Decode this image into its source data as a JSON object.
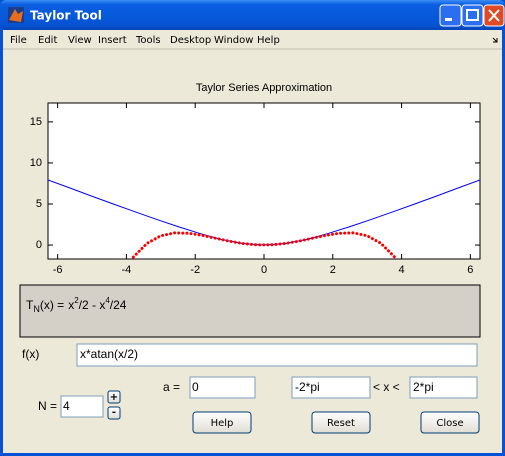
{
  "window": {
    "title": "Taylor Tool"
  },
  "menu": [
    "File",
    "Edit",
    "View",
    "Insert",
    "Tools",
    "Desktop",
    "Window",
    "Help"
  ],
  "chart_data": {
    "type": "line",
    "title": "Taylor Series Approximation",
    "xlim": [
      -6.28,
      6.28
    ],
    "ylim": [
      -1.7,
      17.3
    ],
    "xticks": [
      -6,
      -4,
      -2,
      0,
      2,
      4,
      6
    ],
    "yticks": [
      0,
      5,
      10,
      15
    ],
    "series": [
      {
        "color": "#0000ff",
        "style": "solid",
        "x": [
          -6.28,
          -5.65,
          -5.03,
          -4.4,
          -3.77,
          -3.14,
          -2.51,
          -1.88,
          -1.26,
          -0.63,
          0,
          0.63,
          1.26,
          1.88,
          2.51,
          3.14,
          3.77,
          4.4,
          5.03,
          5.65,
          6.28
        ],
        "values": [
          7.93,
          6.96,
          5.99,
          5.03,
          4.08,
          3.15,
          2.26,
          1.43,
          0.71,
          0.19,
          0,
          0.19,
          0.71,
          1.43,
          2.26,
          3.15,
          4.08,
          5.03,
          5.99,
          6.96,
          7.93
        ]
      },
      {
        "color": "#ff0000",
        "style": "dotted",
        "x": [
          -3.8,
          -3.4,
          -3.0,
          -2.6,
          -2.2,
          -1.8,
          -1.4,
          -1.0,
          -0.6,
          -0.2,
          0.2,
          0.6,
          1.0,
          1.4,
          1.8,
          2.2,
          2.6,
          3.0,
          3.4,
          3.8
        ],
        "values": [
          -1.47,
          0.21,
          1.13,
          1.48,
          1.44,
          1.18,
          0.82,
          0.46,
          0.18,
          0.02,
          0.02,
          0.18,
          0.46,
          0.82,
          1.18,
          1.44,
          1.48,
          1.13,
          0.21,
          -1.47
        ]
      }
    ]
  },
  "panel": {
    "name": "T",
    "subscript": "N",
    "suffix": "(x) =",
    "expression": [
      "x",
      "2",
      "/2 - x",
      "4",
      "/24"
    ]
  },
  "controls": {
    "f_label": "f(x)",
    "f_value": "x*atan(x/2)",
    "n_label": "N =",
    "n_value": "4",
    "plus": "+",
    "minus": "-",
    "a_label": "a =",
    "a_value": "0",
    "x_min": "-2*pi",
    "range_label": "< x <",
    "x_max": "2*pi"
  },
  "buttons": [
    "Help",
    "Reset",
    "Close"
  ]
}
